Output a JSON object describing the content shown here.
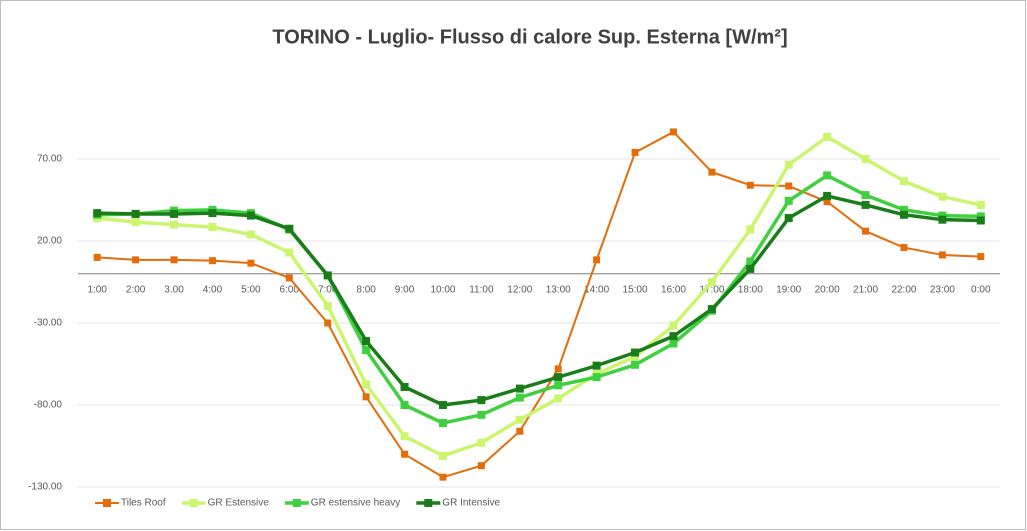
{
  "chart_data": {
    "type": "line",
    "title": "TORINO - Luglio- Flusso di calore Sup. Esterna [W/m²]",
    "categories": [
      "1:00",
      "2:00",
      "3.00",
      "4:00",
      "5:00",
      "6:00",
      "7:00",
      "8:00",
      "9:00",
      "10:00",
      "11:00",
      "12:00",
      "13:00",
      "14:00",
      "15:00",
      "16:00",
      "17:00",
      "18:00",
      "19:00",
      "20:00",
      "21:00",
      "22:00",
      "23:00",
      "0:00"
    ],
    "series": [
      {
        "name": "Tiles Roof",
        "color": "#e46c0a",
        "values": [
          10,
          8.5,
          8.5,
          8,
          6.5,
          -2.5,
          -30,
          -75,
          -110,
          -124,
          -117,
          -96,
          -58,
          8.5,
          74,
          86.5,
          62,
          54,
          53.5,
          44,
          26,
          16,
          11.5,
          10.5
        ]
      },
      {
        "name": "GR Estensive",
        "color": "#ccf56e",
        "values": [
          34,
          31.5,
          30,
          28.5,
          24,
          13,
          -19.5,
          -67.5,
          -99,
          -111,
          -103,
          -89,
          -76,
          -61,
          -50.5,
          -31.5,
          -5,
          27,
          66.5,
          83.5,
          70,
          56.5,
          47,
          42
        ]
      },
      {
        "name": "GR estensive heavy",
        "color": "#3fcf3f",
        "values": [
          36,
          36.5,
          38.5,
          39,
          37,
          27,
          -1,
          -46.5,
          -80,
          -91,
          -86,
          -75.5,
          -68,
          -63,
          -55.5,
          -42.5,
          -22.5,
          7.5,
          44.5,
          60,
          48,
          39,
          35.5,
          35
        ]
      },
      {
        "name": "GR Intensive",
        "color": "#1a7d1a",
        "values": [
          37,
          36.5,
          36.5,
          37,
          35.5,
          27.5,
          -1,
          -41,
          -69,
          -80,
          -77,
          -70,
          -63,
          -56,
          -48,
          -38,
          -21.5,
          3,
          34,
          47.5,
          42,
          36,
          33,
          32.5
        ]
      }
    ],
    "ylim": [
      -130,
      120
    ],
    "yticks": [
      {
        "value": -130,
        "label": "-130.00"
      },
      {
        "value": -80,
        "label": "-80.00"
      },
      {
        "value": -30,
        "label": "-30.00"
      },
      {
        "value": 20,
        "label": "20.00"
      },
      {
        "value": 70,
        "label": "70.00"
      }
    ],
    "grid": true,
    "legend": "bottom"
  }
}
